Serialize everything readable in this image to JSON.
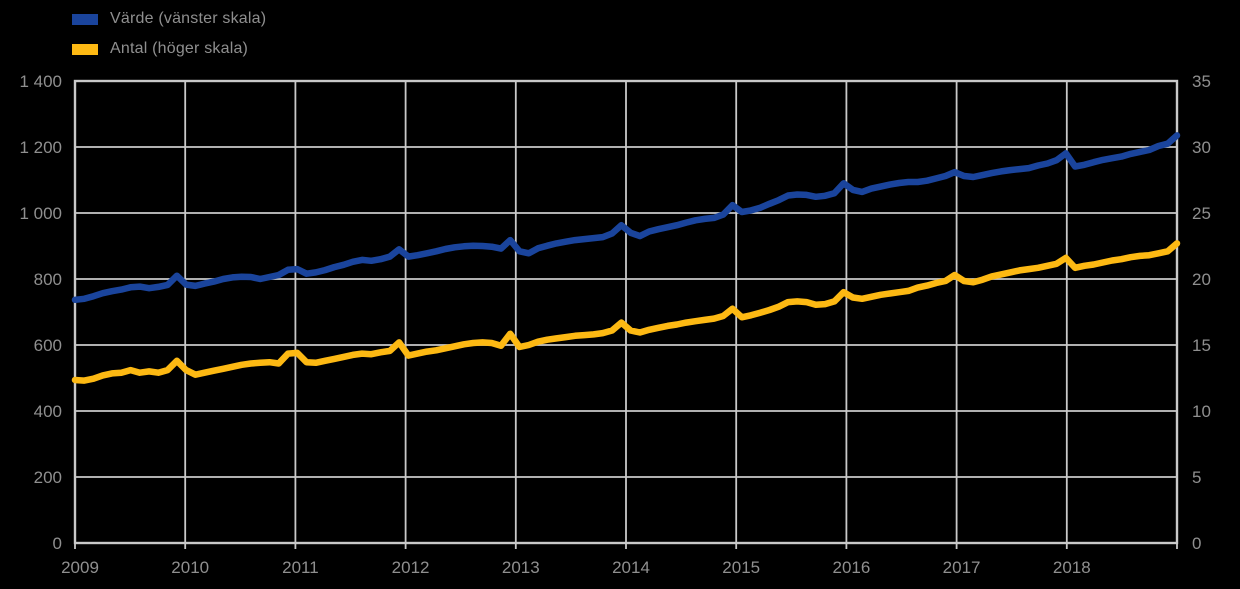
{
  "legend": {
    "items": [
      {
        "label": "Värde (vänster skala)",
        "color": "#1a449c"
      },
      {
        "label": "Antal (höger skala)",
        "color": "#fdb913"
      }
    ]
  },
  "colors": {
    "background": "#000000",
    "grid": "#c9c9c9",
    "axis_text": "#8f8f8f",
    "series_varde": "#1a449c",
    "series_antal": "#fdb913"
  },
  "chart_data": {
    "type": "line",
    "title": "",
    "xlabel": "",
    "ylabel_left": "",
    "ylabel_right": "",
    "grid": true,
    "legend_position": "top-left",
    "x_tick_labels": [
      "2009",
      "2010",
      "2011",
      "2012",
      "2013",
      "2014",
      "2015",
      "2016",
      "2017",
      "2018"
    ],
    "x_resolution": "monthly",
    "x_range": [
      "2009-01",
      "2018-12"
    ],
    "left_axis": {
      "min": 0,
      "max": 1400,
      "step": 200,
      "tick_labels_top_to_bottom": [
        "1 400",
        "1 200",
        "1 000",
        "800",
        "600",
        "400",
        "200",
        "0"
      ]
    },
    "right_axis": {
      "min": 0,
      "max": 35,
      "step": 5,
      "tick_labels_top_to_bottom": [
        "35",
        "30",
        "25",
        "20",
        "15",
        "10",
        "5",
        "0"
      ]
    },
    "series": [
      {
        "name": "Värde (vänster skala)",
        "axis": "left",
        "color": "#1a449c",
        "monthly_values": [
          737,
          740,
          748,
          757,
          763,
          768,
          775,
          777,
          772,
          776,
          782,
          810,
          783,
          779,
          786,
          792,
          800,
          805,
          807,
          806,
          800,
          806,
          812,
          828,
          830,
          816,
          820,
          827,
          836,
          843,
          852,
          858,
          855,
          860,
          868,
          890,
          868,
          872,
          878,
          884,
          891,
          896,
          899,
          901,
          900,
          898,
          892,
          918,
          884,
          878,
          893,
          901,
          908,
          913,
          918,
          921,
          924,
          927,
          938,
          963,
          940,
          930,
          944,
          951,
          957,
          963,
          971,
          978,
          982,
          985,
          995,
          1024,
          1003,
          1008,
          1016,
          1028,
          1039,
          1053,
          1056,
          1055,
          1049,
          1052,
          1060,
          1090,
          1070,
          1064,
          1074,
          1080,
          1086,
          1091,
          1094,
          1094,
          1098,
          1105,
          1112,
          1124,
          1112,
          1109,
          1115,
          1121,
          1126,
          1130,
          1133,
          1136,
          1144,
          1150,
          1160,
          1181,
          1141,
          1146,
          1154,
          1161,
          1166,
          1171,
          1179,
          1185,
          1191,
          1203,
          1210,
          1235
        ]
      },
      {
        "name": "Antal (höger skala)",
        "axis": "right",
        "color": "#fdb913",
        "monthly_values": [
          12.35,
          12.3,
          12.45,
          12.7,
          12.85,
          12.9,
          13.1,
          12.9,
          13.0,
          12.9,
          13.1,
          13.8,
          13.1,
          12.75,
          12.9,
          13.05,
          13.2,
          13.35,
          13.5,
          13.6,
          13.65,
          13.7,
          13.6,
          14.35,
          14.4,
          13.7,
          13.65,
          13.8,
          13.95,
          14.1,
          14.25,
          14.35,
          14.3,
          14.45,
          14.55,
          15.2,
          14.2,
          14.35,
          14.5,
          14.6,
          14.75,
          14.9,
          15.05,
          15.15,
          15.2,
          15.15,
          14.95,
          15.85,
          14.85,
          15.0,
          15.25,
          15.4,
          15.5,
          15.6,
          15.7,
          15.75,
          15.8,
          15.9,
          16.1,
          16.7,
          16.1,
          15.95,
          16.15,
          16.3,
          16.45,
          16.55,
          16.7,
          16.8,
          16.9,
          17.0,
          17.2,
          17.75,
          17.1,
          17.25,
          17.45,
          17.65,
          17.9,
          18.25,
          18.3,
          18.25,
          18.05,
          18.1,
          18.3,
          19.0,
          18.6,
          18.5,
          18.65,
          18.8,
          18.9,
          19.0,
          19.1,
          19.35,
          19.5,
          19.7,
          19.85,
          20.3,
          19.85,
          19.75,
          19.95,
          20.2,
          20.35,
          20.5,
          20.65,
          20.75,
          20.85,
          21.0,
          21.15,
          21.6,
          20.85,
          21.0,
          21.1,
          21.25,
          21.4,
          21.5,
          21.65,
          21.75,
          21.8,
          21.95,
          22.1,
          22.7
        ]
      }
    ]
  }
}
